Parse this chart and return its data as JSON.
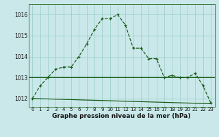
{
  "title": "Graphe pression niveau de la mer (hPa)",
  "background_color": "#cae8ea",
  "plot_bg_color": "#cae8ea",
  "grid_color": "#9ecfcc",
  "line_color": "#1a5c1a",
  "hours": [
    0,
    1,
    2,
    3,
    4,
    5,
    6,
    7,
    8,
    9,
    10,
    11,
    12,
    13,
    14,
    15,
    16,
    17,
    18,
    19,
    20,
    21,
    22,
    23
  ],
  "pressure_main": [
    1012.0,
    1012.6,
    1013.0,
    1013.4,
    1013.5,
    1013.5,
    1014.0,
    1014.6,
    1015.3,
    1015.8,
    1015.8,
    1016.0,
    1015.5,
    1014.4,
    1014.4,
    1013.9,
    1013.9,
    1013.0,
    1013.1,
    1013.0,
    1013.0,
    1013.2,
    1012.6,
    1011.8
  ],
  "flat_line_y": 1013.0,
  "diag_line_x": [
    0,
    23
  ],
  "diag_line_y": [
    1012.0,
    1011.75
  ],
  "ylim_min": 1011.6,
  "ylim_max": 1016.5,
  "xlim_min": -0.5,
  "xlim_max": 23.5,
  "yticks": [
    1012,
    1013,
    1014,
    1015,
    1016
  ],
  "ytick_fontsize": 5.5,
  "xtick_fontsize": 5.0,
  "xlabel_fontsize": 6.5
}
